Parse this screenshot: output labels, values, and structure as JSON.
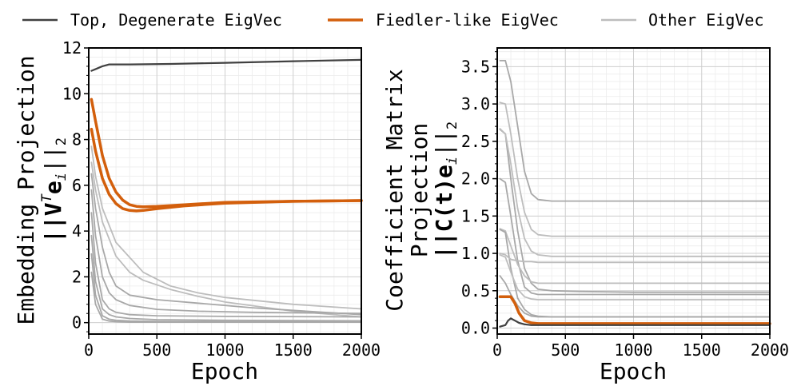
{
  "legend": {
    "placement": "top",
    "items": [
      {
        "label": "Top, Degenerate EigVec",
        "color": "#404040"
      },
      {
        "label": "Fiedler-like EigVec",
        "color": "#d35f0c"
      },
      {
        "label": "Other EigVec",
        "color": "#bdbdbd"
      }
    ]
  },
  "colors": {
    "top": "#404040",
    "fiedler": "#d35f0c",
    "other_light": "#bdbdbd",
    "other_mid": "#a8a8a8"
  },
  "chart_data": [
    {
      "type": "line",
      "xlabel": "Epoch",
      "ylabel_line1": "Embedding Projection",
      "ylabel_line2": "||V",
      "ylabel_sup": "T",
      "ylabel_tail": "e",
      "ylabel_sub": "i",
      "ylabel_end": "||",
      "ylabel_end_sub": "2",
      "xlim": [
        0,
        2000
      ],
      "ylim": [
        -0.5,
        12
      ],
      "xticks": [
        0,
        500,
        1000,
        1500,
        2000
      ],
      "yticks": [
        0,
        2,
        4,
        6,
        8,
        10,
        12
      ],
      "grid": true,
      "series": [
        {
          "group": "top",
          "color": "#404040",
          "width": 2.2,
          "x": [
            20,
            60,
            100,
            150,
            300,
            600,
            1000,
            1500,
            2000
          ],
          "y": [
            11.0,
            11.1,
            11.2,
            11.28,
            11.28,
            11.3,
            11.35,
            11.42,
            11.48
          ]
        },
        {
          "group": "fiedler",
          "color": "#d35f0c",
          "width": 3.5,
          "x": [
            20,
            50,
            100,
            150,
            200,
            250,
            300,
            350,
            400,
            500,
            700,
            1000,
            1500,
            2000
          ],
          "y": [
            9.75,
            8.8,
            7.3,
            6.3,
            5.7,
            5.35,
            5.15,
            5.08,
            5.06,
            5.08,
            5.15,
            5.25,
            5.3,
            5.33
          ]
        },
        {
          "group": "fiedler",
          "color": "#d35f0c",
          "width": 3.5,
          "x": [
            20,
            50,
            100,
            150,
            200,
            250,
            300,
            350,
            400,
            500,
            700,
            1000,
            1500,
            2000
          ],
          "y": [
            8.45,
            7.5,
            6.3,
            5.6,
            5.2,
            4.98,
            4.9,
            4.88,
            4.9,
            4.98,
            5.1,
            5.22,
            5.3,
            5.33
          ]
        },
        {
          "group": "other",
          "color": "#bdbdbd",
          "width": 1.8,
          "x": [
            20,
            50,
            100,
            200,
            400,
            600,
            800,
            1000,
            1500,
            2000
          ],
          "y": [
            7.7,
            6.4,
            5.0,
            3.5,
            2.2,
            1.6,
            1.3,
            1.1,
            0.8,
            0.6
          ]
        },
        {
          "group": "other",
          "color": "#bdbdbd",
          "width": 1.8,
          "x": [
            20,
            50,
            100,
            200,
            300,
            400,
            600,
            800,
            1000,
            1500,
            2000
          ],
          "y": [
            7.0,
            5.8,
            4.4,
            2.9,
            2.2,
            1.85,
            1.45,
            1.15,
            0.9,
            0.5,
            0.25
          ]
        },
        {
          "group": "other",
          "color": "#a8a8a8",
          "width": 1.8,
          "x": [
            20,
            50,
            100,
            150,
            200,
            300,
            500,
            800,
            1200,
            2000
          ],
          "y": [
            6.5,
            5.0,
            3.3,
            2.2,
            1.6,
            1.2,
            1.0,
            0.85,
            0.65,
            0.35
          ]
        },
        {
          "group": "other",
          "color": "#a8a8a8",
          "width": 1.8,
          "x": [
            20,
            50,
            100,
            150,
            200,
            300,
            500,
            800,
            1200,
            2000
          ],
          "y": [
            5.8,
            3.8,
            2.0,
            1.3,
            1.0,
            0.75,
            0.58,
            0.5,
            0.45,
            0.4
          ]
        },
        {
          "group": "other",
          "color": "#a8a8a8",
          "width": 1.8,
          "x": [
            20,
            50,
            100,
            150,
            200,
            300,
            500,
            1000,
            2000
          ],
          "y": [
            4.8,
            2.6,
            1.0,
            0.6,
            0.45,
            0.35,
            0.3,
            0.27,
            0.25
          ]
        },
        {
          "group": "other",
          "color": "#a8a8a8",
          "width": 1.8,
          "x": [
            20,
            50,
            100,
            150,
            200,
            300,
            500,
            1000,
            2000
          ],
          "y": [
            3.8,
            1.8,
            0.6,
            0.35,
            0.25,
            0.18,
            0.13,
            0.1,
            0.08
          ]
        },
        {
          "group": "other",
          "color": "#a8a8a8",
          "width": 1.8,
          "x": [
            20,
            50,
            100,
            150,
            200,
            300,
            500,
            1000,
            2000
          ],
          "y": [
            3.0,
            1.2,
            0.3,
            0.15,
            0.1,
            0.07,
            0.05,
            0.04,
            0.03
          ]
        },
        {
          "group": "other",
          "color": "#a8a8a8",
          "width": 1.8,
          "x": [
            20,
            50,
            100,
            150,
            200,
            300,
            500,
            1000,
            2000
          ],
          "y": [
            2.2,
            0.8,
            0.15,
            0.07,
            0.04,
            0.02,
            0.02,
            0.02,
            0.02
          ]
        }
      ]
    },
    {
      "type": "line",
      "xlabel": "Epoch",
      "ylabel_line1": "Coefficient Matrix",
      "ylabel_line2": "Projection",
      "ylabel_line3": "||C(t)e",
      "ylabel_sub": "i",
      "ylabel_end": "||",
      "ylabel_end_sub": "2",
      "xlim": [
        0,
        2000
      ],
      "ylim": [
        -0.08,
        3.75
      ],
      "xticks": [
        0,
        500,
        1000,
        1500,
        2000
      ],
      "yticks": [
        0.0,
        0.5,
        1.0,
        1.5,
        2.0,
        2.5,
        3.0,
        3.5
      ],
      "grid": true,
      "series": [
        {
          "group": "other",
          "color": "#a8a8a8",
          "width": 1.8,
          "x": [
            20,
            60,
            100,
            150,
            200,
            250,
            300,
            400,
            600,
            1000,
            2000
          ],
          "y": [
            3.58,
            3.58,
            3.3,
            2.7,
            2.1,
            1.8,
            1.72,
            1.7,
            1.7,
            1.7,
            1.7
          ]
        },
        {
          "group": "other",
          "color": "#bdbdbd",
          "width": 1.8,
          "x": [
            20,
            60,
            100,
            150,
            200,
            250,
            300,
            400,
            600,
            1000,
            2000
          ],
          "y": [
            3.02,
            3.0,
            2.6,
            2.0,
            1.55,
            1.32,
            1.25,
            1.23,
            1.23,
            1.23,
            1.23
          ]
        },
        {
          "group": "other",
          "color": "#a8a8a8",
          "width": 1.8,
          "x": [
            20,
            60,
            100,
            150,
            200,
            250,
            300,
            400,
            600,
            1000,
            2000
          ],
          "y": [
            2.66,
            2.6,
            2.0,
            1.3,
            0.8,
            0.6,
            0.52,
            0.5,
            0.49,
            0.48,
            0.48
          ]
        },
        {
          "group": "other",
          "color": "#bdbdbd",
          "width": 1.8,
          "x": [
            20,
            60,
            100,
            150,
            200,
            250,
            300,
            400,
            600,
            1000,
            2000
          ],
          "y": [
            2.67,
            2.6,
            2.2,
            1.6,
            1.2,
            1.03,
            0.98,
            0.96,
            0.96,
            0.96,
            0.96
          ]
        },
        {
          "group": "other",
          "color": "#a8a8a8",
          "width": 1.8,
          "x": [
            20,
            60,
            100,
            150,
            200,
            250,
            300,
            400,
            600,
            1000,
            2000
          ],
          "y": [
            2.0,
            1.95,
            1.5,
            0.9,
            0.55,
            0.47,
            0.45,
            0.45,
            0.45,
            0.45,
            0.45
          ]
        },
        {
          "group": "other",
          "color": "#bdbdbd",
          "width": 1.8,
          "x": [
            20,
            60,
            100,
            150,
            200,
            250,
            300,
            400,
            600,
            1000,
            2000
          ],
          "y": [
            1.33,
            1.3,
            1.1,
            0.85,
            0.7,
            0.62,
            0.6,
            0.6,
            0.6,
            0.6,
            0.6
          ]
        },
        {
          "group": "other",
          "color": "#a8a8a8",
          "width": 1.8,
          "x": [
            20,
            60,
            100,
            150,
            200,
            250,
            300,
            400,
            600,
            1000,
            2000
          ],
          "y": [
            1.32,
            1.28,
            0.8,
            0.4,
            0.25,
            0.18,
            0.16,
            0.15,
            0.15,
            0.15,
            0.15
          ]
        },
        {
          "group": "other",
          "color": "#bdbdbd",
          "width": 1.8,
          "x": [
            20,
            60,
            100,
            150,
            200,
            250,
            300,
            400,
            600,
            1000,
            2000
          ],
          "y": [
            1.0,
            0.98,
            0.92,
            0.9,
            0.89,
            0.89,
            0.88,
            0.88,
            0.88,
            0.88,
            0.88
          ]
        },
        {
          "group": "other",
          "color": "#bdbdbd",
          "width": 1.8,
          "x": [
            20,
            60,
            100,
            150,
            200,
            250,
            300,
            400,
            600,
            1000,
            2000
          ],
          "y": [
            0.98,
            0.95,
            0.75,
            0.52,
            0.42,
            0.39,
            0.38,
            0.38,
            0.38,
            0.38,
            0.38
          ]
        },
        {
          "group": "other",
          "color": "#a8a8a8",
          "width": 1.8,
          "x": [
            20,
            60,
            100,
            150,
            200,
            250,
            300,
            400,
            600,
            1000,
            2000
          ],
          "y": [
            0.7,
            0.6,
            0.45,
            0.3,
            0.2,
            0.16,
            0.15,
            0.15,
            0.15,
            0.15,
            0.15
          ]
        },
        {
          "group": "fiedler",
          "color": "#d35f0c",
          "width": 3.5,
          "x": [
            20,
            60,
            100,
            130,
            160,
            200,
            250,
            300,
            400,
            600,
            1000,
            2000
          ],
          "y": [
            0.42,
            0.42,
            0.42,
            0.33,
            0.2,
            0.1,
            0.07,
            0.06,
            0.06,
            0.06,
            0.06,
            0.06
          ]
        },
        {
          "group": "top",
          "color": "#404040",
          "width": 2.2,
          "x": [
            20,
            60,
            80,
            100,
            130,
            160,
            200,
            250,
            300,
            400,
            600,
            1000,
            2000
          ],
          "y": [
            0.02,
            0.04,
            0.1,
            0.13,
            0.1,
            0.07,
            0.05,
            0.04,
            0.04,
            0.04,
            0.04,
            0.04,
            0.04
          ]
        }
      ]
    }
  ]
}
